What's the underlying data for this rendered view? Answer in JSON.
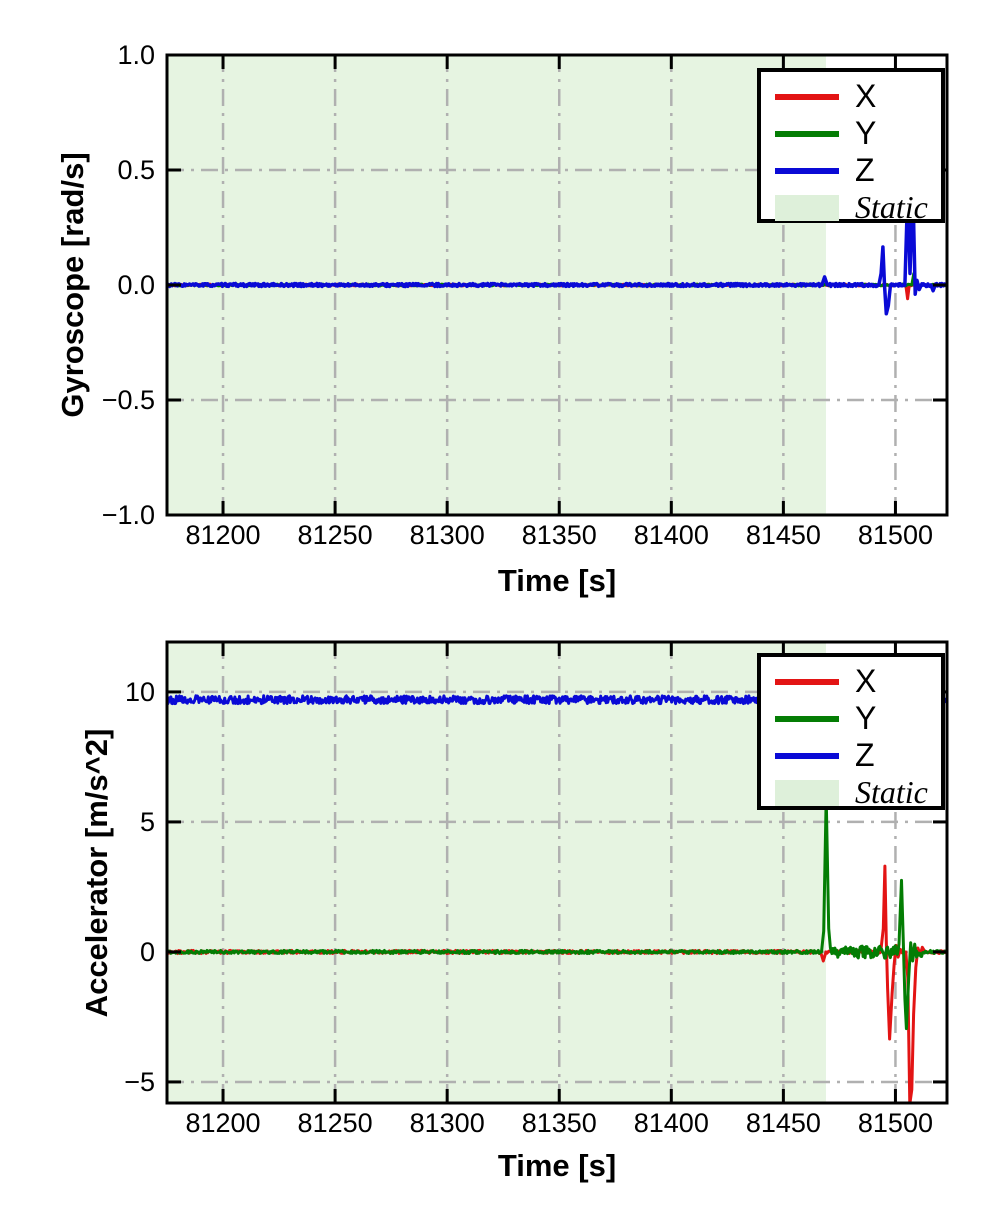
{
  "figure": {
    "background": "#ffffff"
  },
  "colors": {
    "x_series": "#e31414",
    "y_series": "#047d04",
    "z_series": "#0a0ad6",
    "static_fill": "#e6f4e1",
    "legend_patch": "#def0da",
    "grid": "#b0b0b0",
    "spine": "#000000"
  },
  "chart_data": [
    {
      "id": "gyroscope",
      "type": "line",
      "title": "",
      "xlabel": "Time [s]",
      "ylabel": "Gyroscope [rad/s]",
      "xlim": [
        81175,
        81523
      ],
      "ylim": [
        -1.0,
        1.0
      ],
      "xticks": [
        81200,
        81250,
        81300,
        81350,
        81400,
        81450,
        81500
      ],
      "xtick_labels": [
        "81200",
        "81250",
        "81300",
        "81350",
        "81400",
        "81450",
        "81500"
      ],
      "yticks": [
        1.0,
        0.5,
        0.0,
        -0.5,
        -1.0
      ],
      "ytick_labels": [
        "1.0",
        "0.5",
        "0.0",
        "−0.5",
        "−1.0"
      ],
      "grid": {
        "on": true,
        "style": "dashdot",
        "color": "#b0b0b0"
      },
      "static_region": {
        "t_start": 81175,
        "t_end": 81469,
        "fill": "#e6f4e1",
        "label": "Static"
      },
      "legend": {
        "position": "upper right",
        "entries": [
          {
            "label": "X",
            "swatch": "line",
            "color": "#e31414",
            "italic": false
          },
          {
            "label": "Y",
            "swatch": "line",
            "color": "#047d04",
            "italic": false
          },
          {
            "label": "Z",
            "swatch": "line",
            "color": "#0a0ad6",
            "italic": false
          },
          {
            "label": "Static",
            "swatch": "patch",
            "color": "#def0da",
            "italic": true
          }
        ]
      },
      "series": [
        {
          "name": "X",
          "color": "#e31414",
          "lw": 3,
          "base": 0,
          "noise": 0.004,
          "seed": 11,
          "samples": 600,
          "events": [
            [
              [
                81504.6,
                0
              ],
              [
                81505.4,
                -0.06
              ],
              [
                81506.2,
                0
              ]
            ]
          ]
        },
        {
          "name": "Y",
          "color": "#047d04",
          "lw": 3,
          "base": 0,
          "noise": 0.004,
          "seed": 22,
          "samples": 600,
          "events": [
            [
              [
                81507.3,
                0
              ],
              [
                81508.2,
                0.05
              ],
              [
                81509.1,
                0
              ]
            ]
          ]
        },
        {
          "name": "Z",
          "color": "#0a0ad6",
          "lw": 3.5,
          "base": 0,
          "noise": 0.0065,
          "seed": 33,
          "samples": 900,
          "events": [
            [
              [
                81467.2,
                0
              ],
              [
                81468.4,
                0.035
              ],
              [
                81469.6,
                0
              ]
            ],
            [
              [
                81492.6,
                0
              ],
              [
                81493.6,
                0.05
              ],
              [
                81494.4,
                0.165
              ],
              [
                81495.1,
                0
              ],
              [
                81495.9,
                -0.125
              ],
              [
                81496.8,
                -0.09
              ],
              [
                81497.8,
                0
              ]
            ],
            [
              [
                81504.2,
                0
              ],
              [
                81505.5,
                0.42
              ],
              [
                81506.5,
                0.05
              ],
              [
                81507.8,
                0.42
              ],
              [
                81508.8,
                -0.04
              ],
              [
                81509.6,
                0.02
              ],
              [
                81510.6,
                -0.02
              ],
              [
                81511.6,
                0
              ]
            ],
            [
              [
                81515.8,
                0
              ],
              [
                81516.8,
                -0.025
              ],
              [
                81517.8,
                0
              ]
            ]
          ]
        }
      ]
    },
    {
      "id": "accelerator",
      "type": "line",
      "title": "",
      "xlabel": "Time [s]",
      "ylabel": "Accelerator [m/s^2]",
      "xlim": [
        81175,
        81523
      ],
      "ylim": [
        -5.81,
        11.92
      ],
      "xticks": [
        81200,
        81250,
        81300,
        81350,
        81400,
        81450,
        81500
      ],
      "xtick_labels": [
        "81200",
        "81250",
        "81300",
        "81350",
        "81400",
        "81450",
        "81500"
      ],
      "yticks": [
        10,
        5,
        0,
        -5
      ],
      "ytick_labels": [
        "10",
        "5",
        "0",
        "−5"
      ],
      "grid": {
        "on": true,
        "style": "dashdot",
        "color": "#b0b0b0"
      },
      "static_region": {
        "t_start": 81175,
        "t_end": 81469,
        "fill": "#e6f4e1",
        "label": "Static"
      },
      "legend": {
        "position": "upper right",
        "entries": [
          {
            "label": "X",
            "swatch": "line",
            "color": "#e31414",
            "italic": false
          },
          {
            "label": "Y",
            "swatch": "line",
            "color": "#047d04",
            "italic": false
          },
          {
            "label": "Z",
            "swatch": "line",
            "color": "#0a0ad6",
            "italic": false
          },
          {
            "label": "Static",
            "swatch": "patch",
            "color": "#def0da",
            "italic": true
          }
        ]
      },
      "series": [
        {
          "name": "X",
          "color": "#e31414",
          "lw": 3,
          "base": 0,
          "noise": 0.06,
          "seed": 44,
          "samples": 800,
          "events": [
            [
              [
                81466.6,
                0
              ],
              [
                81467.8,
                -0.35
              ],
              [
                81469,
                0
              ]
            ],
            [
              [
                81493.4,
                0
              ],
              [
                81494.6,
                0.9
              ],
              [
                81495.3,
                3.3
              ],
              [
                81495.9,
                0.4
              ],
              [
                81496.5,
                -1.4
              ],
              [
                81497.4,
                -3.35
              ],
              [
                81498.5,
                -1.6
              ],
              [
                81499.4,
                -0.5
              ],
              [
                81500.3,
                0.25
              ],
              [
                81501.2,
                -0.2
              ],
              [
                81502.2,
                0.1
              ]
            ],
            [
              [
                81504.6,
                0
              ],
              [
                81505.5,
                -1.0
              ],
              [
                81506.4,
                -5.85
              ],
              [
                81507.3,
                -5.3
              ],
              [
                81508.1,
                -2.4
              ],
              [
                81509.1,
                -0.6
              ],
              [
                81510,
                0.15
              ],
              [
                81511,
                -0.12
              ],
              [
                81512,
                0.18
              ],
              [
                81513.2,
                0
              ]
            ]
          ]
        },
        {
          "name": "Y",
          "color": "#047d04",
          "lw": 3,
          "base": 0,
          "noise": 0.06,
          "seed": 55,
          "samples": 800,
          "noise_segments": [
            {
              "from": 81470.5,
              "to": 81512,
              "amp": 0.24
            }
          ],
          "events": [
            [
              [
                81467,
                0
              ],
              [
                81468,
                0.8
              ],
              [
                81469.1,
                5.95
              ],
              [
                81470.2,
                0.9
              ],
              [
                81471,
                0.15
              ]
            ],
            [
              [
                81501.6,
                0.3
              ],
              [
                81502.7,
                2.75
              ],
              [
                81503.5,
                0.4
              ],
              [
                81504.2,
                -1.8
              ],
              [
                81504.9,
                -2.95
              ],
              [
                81505.9,
                -1.0
              ],
              [
                81506.8,
                0.35
              ],
              [
                81507.7,
                -0.35
              ],
              [
                81508.6,
                0.3
              ],
              [
                81509.4,
                -0.2
              ]
            ]
          ]
        },
        {
          "name": "Z",
          "color": "#0a0ad6",
          "lw": 3,
          "base": 9.7,
          "noise": 0.15,
          "seed": 66,
          "samples": 1000,
          "events": []
        }
      ]
    }
  ]
}
